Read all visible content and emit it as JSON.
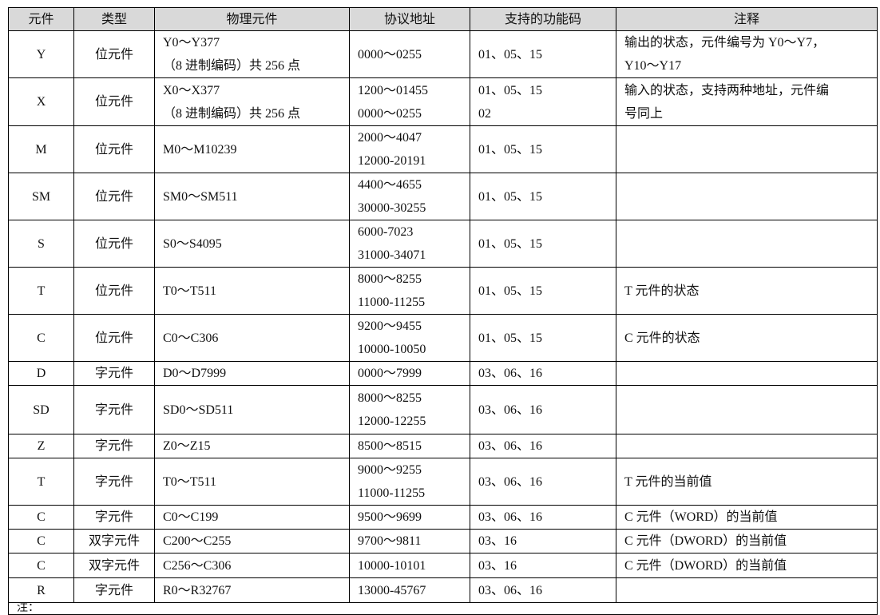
{
  "headers": [
    "元件",
    "类型",
    "物理元件",
    "协议地址",
    "支持的功能码",
    "注释"
  ],
  "rows": [
    {
      "element": "Y",
      "type": "位元件",
      "physical": [
        "Y0～Y377",
        "（8 进制编码）共 256 点"
      ],
      "address": [
        "0000～0255"
      ],
      "codes": [
        "01、05、15"
      ],
      "note": [
        "输出的状态，元件编号为 Y0～Y7，",
        "Y10～Y17"
      ]
    },
    {
      "element": "X",
      "type": "位元件",
      "physical": [
        "X0～X377",
        "（8 进制编码）共 256 点"
      ],
      "address": [
        "1200～01455",
        "0000～0255"
      ],
      "codes": [
        "01、05、15",
        "02"
      ],
      "note": [
        "输入的状态，支持两种地址，元件编",
        "号同上"
      ]
    },
    {
      "element": "M",
      "type": "位元件",
      "physical": [
        "M0～M10239"
      ],
      "address": [
        "2000～4047",
        "12000-20191"
      ],
      "codes": [
        "01、05、15"
      ],
      "note": []
    },
    {
      "element": "SM",
      "type": "位元件",
      "physical": [
        "SM0～SM511"
      ],
      "address": [
        "4400～4655",
        "30000-30255"
      ],
      "codes": [
        "01、05、15"
      ],
      "note": []
    },
    {
      "element": "S",
      "type": "位元件",
      "physical": [
        "S0～S4095"
      ],
      "address": [
        "6000-7023",
        "31000-34071"
      ],
      "codes": [
        "01、05、15"
      ],
      "note": []
    },
    {
      "element": "T",
      "type": "位元件",
      "physical": [
        "T0～T511"
      ],
      "address": [
        "8000～8255",
        "11000-11255"
      ],
      "codes": [
        "01、05、15"
      ],
      "note": [
        "T 元件的状态"
      ]
    },
    {
      "element": "C",
      "type": "位元件",
      "physical": [
        "C0～C306"
      ],
      "address": [
        "9200～9455",
        "10000-10050"
      ],
      "codes": [
        "01、05、15"
      ],
      "note": [
        "C 元件的状态"
      ]
    },
    {
      "element": "D",
      "type": "字元件",
      "physical": [
        "D0～D7999"
      ],
      "address": [
        "0000～7999"
      ],
      "codes": [
        "03、06、16"
      ],
      "note": []
    },
    {
      "element": "SD",
      "type": "字元件",
      "physical": [
        "SD0～SD511"
      ],
      "address": [
        "8000～8255",
        "12000-12255"
      ],
      "codes": [
        "03、06、16"
      ],
      "note": []
    },
    {
      "element": "Z",
      "type": "字元件",
      "physical": [
        "Z0～Z15"
      ],
      "address": [
        "8500～8515"
      ],
      "codes": [
        "03、06、16"
      ],
      "note": []
    },
    {
      "element": "T",
      "type": "字元件",
      "physical": [
        "T0～T511"
      ],
      "address": [
        "9000～9255",
        "11000-11255"
      ],
      "codes": [
        "03、06、16"
      ],
      "note": [
        "T 元件的当前值"
      ]
    },
    {
      "element": "C",
      "type": "字元件",
      "physical": [
        "C0～C199"
      ],
      "address": [
        "9500～9699"
      ],
      "codes": [
        "03、06、16"
      ],
      "note": [
        "C 元件（WORD）的当前值"
      ]
    },
    {
      "element": "C",
      "type": "双字元件",
      "physical": [
        "C200～C255"
      ],
      "address": [
        "9700～9811"
      ],
      "codes": [
        "03、16"
      ],
      "note": [
        "C 元件（DWORD）的当前值"
      ]
    },
    {
      "element": "C",
      "type": "双字元件",
      "physical": [
        "C256～C306"
      ],
      "address": [
        "10000-10101"
      ],
      "codes": [
        "03、16"
      ],
      "note": [
        "C 元件（DWORD）的当前值"
      ]
    },
    {
      "element": "R",
      "type": "字元件",
      "physical": [
        "R0～R32767"
      ],
      "address": [
        "13000-45767"
      ],
      "codes": [
        "03、06、16"
      ],
      "note": []
    }
  ],
  "footnote": "注："
}
